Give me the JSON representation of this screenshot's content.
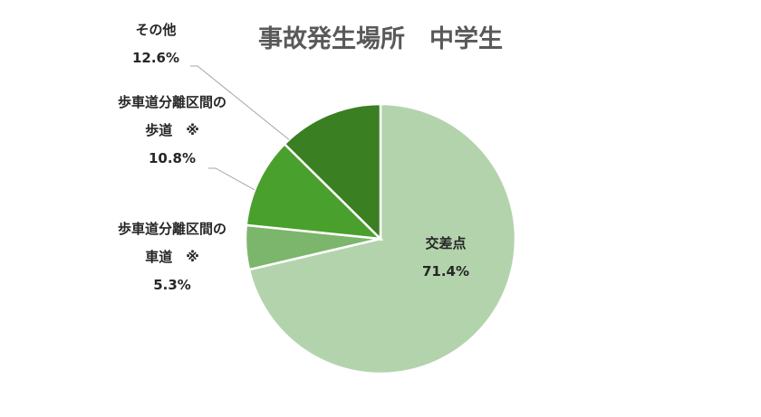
{
  "chart_data": {
    "type": "pie",
    "title": "事故発生場所　中学生",
    "slices": [
      {
        "label_lines": [
          "交差点"
        ],
        "value": 71.4,
        "value_label": "71.4%",
        "color": "#b3d3ad"
      },
      {
        "label_lines": [
          "歩車道分離区間の",
          "車道　※"
        ],
        "value": 5.3,
        "value_label": "5.3%",
        "color": "#7cb66c"
      },
      {
        "label_lines": [
          "歩車道分離区間の",
          "歩道　※"
        ],
        "value": 10.8,
        "value_label": "10.8%",
        "color": "#4aa02d"
      },
      {
        "label_lines": [
          "その他"
        ],
        "value": 12.6,
        "value_label": "12.6%",
        "color": "#3a7f22"
      }
    ],
    "legend": "none",
    "start_angle_deg": 0,
    "direction": "clockwise"
  }
}
